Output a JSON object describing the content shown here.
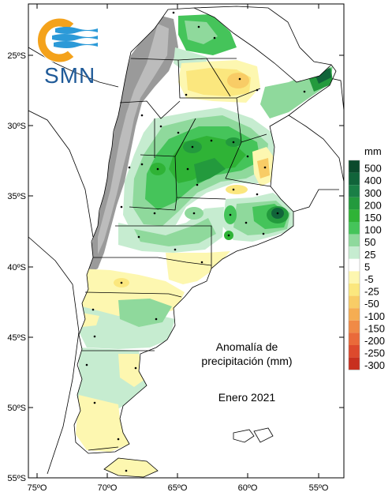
{
  "logo": {
    "text": "SMN",
    "colors": {
      "sun": "#f4a21b",
      "waves": "#2c9ad8",
      "text": "#1f5a98"
    }
  },
  "annotation": {
    "line1": "Anomalía de",
    "line2": "precipitación (mm)",
    "date": "Enero 2021"
  },
  "axes": {
    "lat_labels": [
      "25ºS",
      "30ºS",
      "35ºS",
      "40ºS",
      "45ºS",
      "50ºS",
      "55ºS"
    ],
    "lon_labels": [
      "75ºO",
      "70ºO",
      "65ºO",
      "60ºO",
      "55ºO"
    ]
  },
  "legend": {
    "unit": "mm",
    "levels": [
      {
        "label": "500",
        "color": "#0b4a2c"
      },
      {
        "label": "400",
        "color": "#11643a"
      },
      {
        "label": "300",
        "color": "#1a7f46"
      },
      {
        "label": "200",
        "color": "#239a3d"
      },
      {
        "label": "150",
        "color": "#2fb336"
      },
      {
        "label": "100",
        "color": "#45c45a"
      },
      {
        "label": "50",
        "color": "#8fd99c"
      },
      {
        "label": "25",
        "color": "#c6ecd0"
      },
      {
        "label": "5",
        "color": "#ffffff"
      },
      {
        "label": "-5",
        "color": "#fdf7b0"
      },
      {
        "label": "-25",
        "color": "#fbe77e"
      },
      {
        "label": "-50",
        "color": "#f8cc66"
      },
      {
        "label": "-100",
        "color": "#f5ad52"
      },
      {
        "label": "-150",
        "color": "#f08a46"
      },
      {
        "label": "-200",
        "color": "#ea6a3a"
      },
      {
        "label": "-250",
        "color": "#dd4a2d"
      },
      {
        "label": "-300",
        "color": "#c8301f"
      }
    ]
  }
}
